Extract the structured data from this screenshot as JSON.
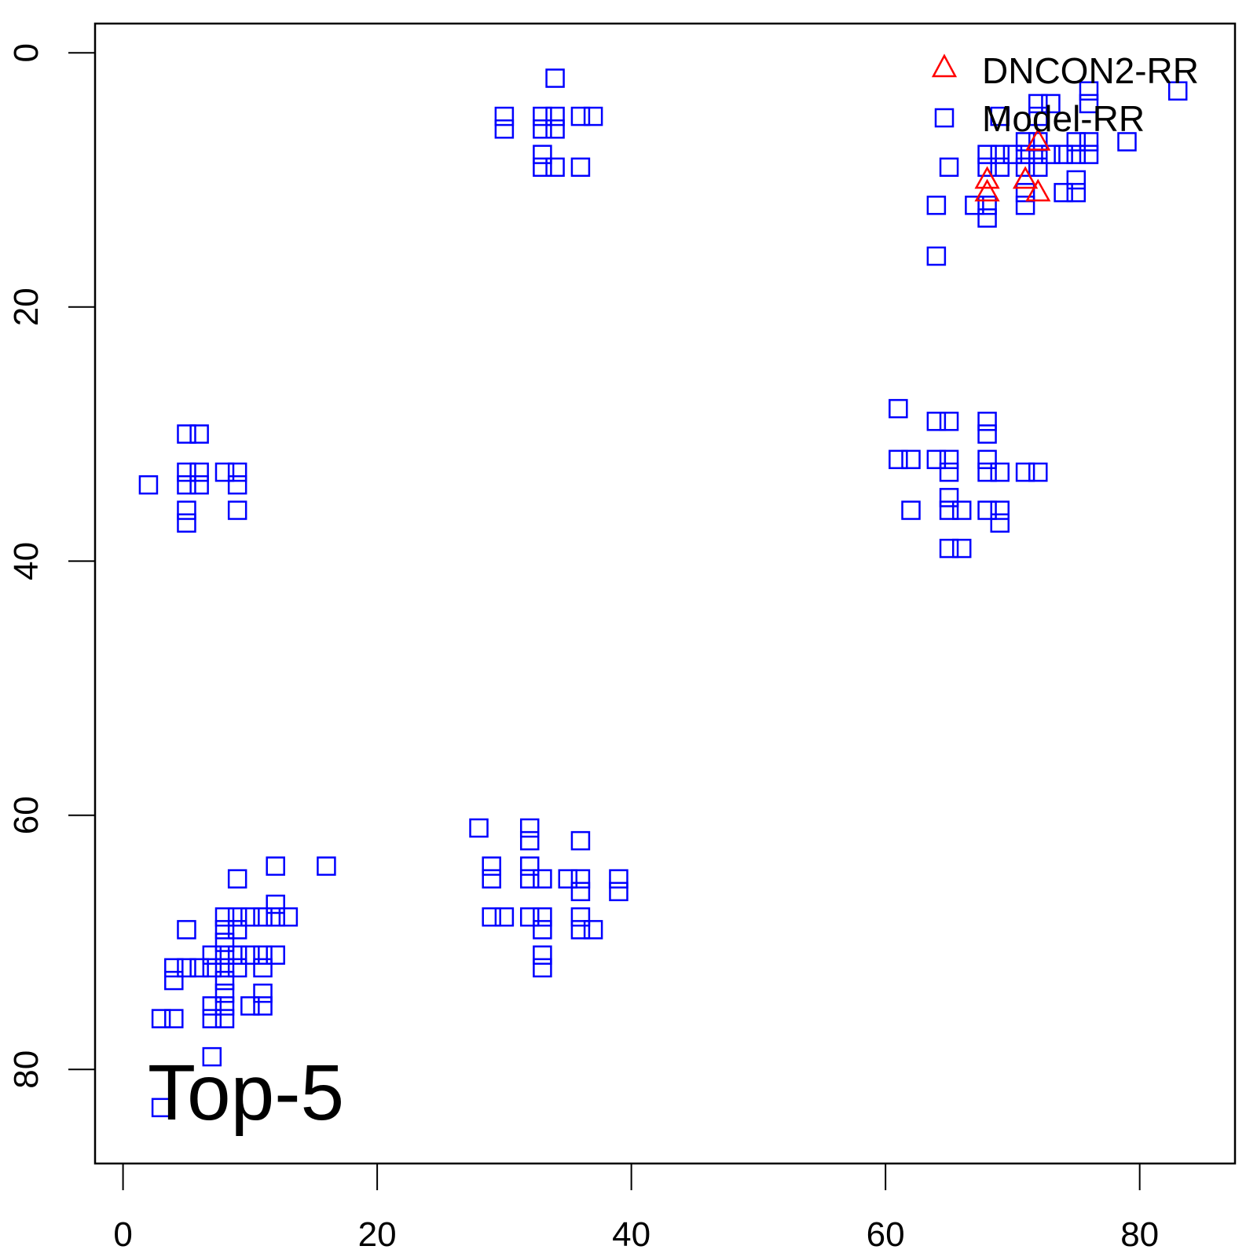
{
  "chart_data": {
    "type": "scatter",
    "title": "",
    "annotation": "Top-5",
    "xlabel": "",
    "ylabel": "",
    "xlim": [
      -2.2,
      87.5
    ],
    "ylim": [
      87.4,
      -2.3
    ],
    "y_reversed": true,
    "grid": false,
    "legend_position": "top-right",
    "x_ticks": [
      0,
      20,
      40,
      60,
      80
    ],
    "y_ticks": [
      0,
      20,
      40,
      60,
      80
    ],
    "x_tick_labels": [
      "0",
      "20",
      "40",
      "60",
      "80"
    ],
    "y_tick_labels": [
      "0",
      "20",
      "40",
      "60",
      "80"
    ],
    "series": [
      {
        "name": "DNCON2-RR",
        "marker": "triangle-open",
        "color": "#ff0000",
        "points": [
          [
            72,
            7
          ],
          [
            68,
            10
          ],
          [
            68,
            11
          ],
          [
            71,
            10
          ],
          [
            72,
            11
          ]
        ]
      },
      {
        "name": "Model-RR",
        "marker": "square-open",
        "color": "#0000ff",
        "points": [
          [
            34,
            2
          ],
          [
            30,
            5
          ],
          [
            30,
            6
          ],
          [
            33,
            5
          ],
          [
            34,
            5
          ],
          [
            33,
            6
          ],
          [
            34,
            6
          ],
          [
            36,
            5
          ],
          [
            37,
            5
          ],
          [
            33,
            8
          ],
          [
            33,
            9
          ],
          [
            34,
            9
          ],
          [
            36,
            9
          ],
          [
            83,
            3
          ],
          [
            76,
            3
          ],
          [
            76,
            4
          ],
          [
            72,
            4
          ],
          [
            73,
            4
          ],
          [
            69,
            5
          ],
          [
            72,
            5
          ],
          [
            71,
            7
          ],
          [
            72,
            7
          ],
          [
            75,
            7
          ],
          [
            76,
            7
          ],
          [
            79,
            7
          ],
          [
            68,
            8
          ],
          [
            69,
            8
          ],
          [
            70,
            8
          ],
          [
            71,
            8
          ],
          [
            72,
            8
          ],
          [
            73,
            8
          ],
          [
            74,
            8
          ],
          [
            75,
            8
          ],
          [
            76,
            8
          ],
          [
            65,
            9
          ],
          [
            68,
            9
          ],
          [
            69,
            9
          ],
          [
            71,
            9
          ],
          [
            72,
            9
          ],
          [
            75,
            10
          ],
          [
            71,
            11
          ],
          [
            74,
            11
          ],
          [
            75,
            11
          ],
          [
            64,
            12
          ],
          [
            67,
            12
          ],
          [
            68,
            12
          ],
          [
            71,
            12
          ],
          [
            68,
            13
          ],
          [
            64,
            16
          ],
          [
            2,
            34
          ],
          [
            5,
            30
          ],
          [
            6,
            30
          ],
          [
            5,
            33
          ],
          [
            6,
            33
          ],
          [
            5,
            34
          ],
          [
            6,
            34
          ],
          [
            8,
            33
          ],
          [
            9,
            33
          ],
          [
            9,
            34
          ],
          [
            9,
            36
          ],
          [
            5,
            36
          ],
          [
            5,
            37
          ],
          [
            61,
            28
          ],
          [
            64,
            29
          ],
          [
            65,
            29
          ],
          [
            68,
            29
          ],
          [
            68,
            30
          ],
          [
            61,
            32
          ],
          [
            62,
            32
          ],
          [
            64,
            32
          ],
          [
            65,
            32
          ],
          [
            65,
            33
          ],
          [
            68,
            32
          ],
          [
            68,
            33
          ],
          [
            69,
            33
          ],
          [
            71,
            33
          ],
          [
            72,
            33
          ],
          [
            62,
            36
          ],
          [
            65,
            35
          ],
          [
            65,
            36
          ],
          [
            66,
            36
          ],
          [
            68,
            36
          ],
          [
            69,
            36
          ],
          [
            69,
            37
          ],
          [
            65,
            39
          ],
          [
            66,
            39
          ],
          [
            28,
            61
          ],
          [
            32,
            61
          ],
          [
            32,
            62
          ],
          [
            36,
            62
          ],
          [
            29,
            64
          ],
          [
            29,
            65
          ],
          [
            32,
            64
          ],
          [
            32,
            65
          ],
          [
            33,
            65
          ],
          [
            35,
            65
          ],
          [
            36,
            65
          ],
          [
            36,
            66
          ],
          [
            39,
            65
          ],
          [
            39,
            66
          ],
          [
            29,
            68
          ],
          [
            30,
            68
          ],
          [
            32,
            68
          ],
          [
            33,
            68
          ],
          [
            33,
            69
          ],
          [
            36,
            68
          ],
          [
            36,
            69
          ],
          [
            37,
            69
          ],
          [
            33,
            71
          ],
          [
            33,
            72
          ],
          [
            12,
            64
          ],
          [
            16,
            64
          ],
          [
            9,
            65
          ],
          [
            12,
            67
          ],
          [
            8,
            68
          ],
          [
            9,
            68
          ],
          [
            10,
            68
          ],
          [
            11,
            68
          ],
          [
            12,
            68
          ],
          [
            13,
            68
          ],
          [
            5,
            69
          ],
          [
            8,
            69
          ],
          [
            9,
            69
          ],
          [
            8,
            70
          ],
          [
            7,
            71
          ],
          [
            8,
            71
          ],
          [
            9,
            71
          ],
          [
            10,
            71
          ],
          [
            11,
            71
          ],
          [
            12,
            71
          ],
          [
            4,
            72
          ],
          [
            5,
            72
          ],
          [
            6,
            72
          ],
          [
            7,
            72
          ],
          [
            8,
            72
          ],
          [
            9,
            72
          ],
          [
            11,
            72
          ],
          [
            4,
            73
          ],
          [
            8,
            73
          ],
          [
            8,
            74
          ],
          [
            11,
            74
          ],
          [
            7,
            75
          ],
          [
            8,
            75
          ],
          [
            10,
            75
          ],
          [
            11,
            75
          ],
          [
            3,
            76
          ],
          [
            4,
            76
          ],
          [
            7,
            76
          ],
          [
            8,
            76
          ],
          [
            7,
            79
          ],
          [
            3,
            83
          ]
        ]
      }
    ]
  }
}
